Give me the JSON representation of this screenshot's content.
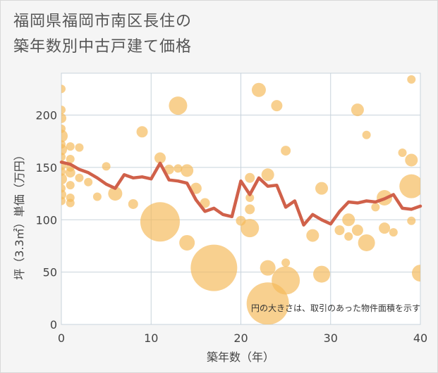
{
  "title_line1": "福岡県福岡市南区長住の",
  "title_line2": "築年数別中古戸建て価格",
  "chart_data": {
    "type": "scatter",
    "xlabel": "築年数（年）",
    "ylabel": "坪（3.3㎡）単価（万円）",
    "xlim": [
      0,
      40
    ],
    "ylim": [
      0,
      240
    ],
    "xticks": [
      0,
      10,
      20,
      30,
      40
    ],
    "yticks": [
      0,
      50,
      100,
      150,
      200
    ],
    "grid": true,
    "annotation": "円の大きさは、取引のあった物件面積を示す",
    "colors": {
      "bubble": "#f5b95a",
      "line": "#d0614a",
      "plot_bg": "#ffffff"
    },
    "line": {
      "x": [
        0,
        1,
        2,
        3,
        4,
        5,
        6,
        7,
        8,
        9,
        10,
        11,
        12,
        13,
        14,
        15,
        16,
        17,
        18,
        19,
        20,
        21,
        22,
        23,
        24,
        25,
        26,
        27,
        28,
        29,
        30,
        31,
        32,
        33,
        34,
        35,
        36,
        37,
        38,
        39,
        40
      ],
      "y": [
        155,
        153,
        148,
        145,
        140,
        134,
        130,
        143,
        140,
        141,
        139,
        154,
        138,
        137,
        135,
        119,
        108,
        111,
        105,
        103,
        137,
        124,
        140,
        132,
        133,
        112,
        118,
        95,
        105,
        100,
        96,
        108,
        117,
        116,
        118,
        117,
        120,
        124,
        111,
        110,
        113
      ]
    },
    "bubbles": [
      {
        "x": 0,
        "y": 225,
        "r": 6
      },
      {
        "x": 0,
        "y": 205,
        "r": 6
      },
      {
        "x": 0,
        "y": 197,
        "r": 7
      },
      {
        "x": 0,
        "y": 187,
        "r": 6
      },
      {
        "x": 0,
        "y": 180,
        "r": 9
      },
      {
        "x": 0,
        "y": 172,
        "r": 6
      },
      {
        "x": 0,
        "y": 167,
        "r": 8
      },
      {
        "x": 0,
        "y": 160,
        "r": 6
      },
      {
        "x": 0,
        "y": 152,
        "r": 7
      },
      {
        "x": 0,
        "y": 146,
        "r": 6
      },
      {
        "x": 0,
        "y": 139,
        "r": 8
      },
      {
        "x": 0,
        "y": 130,
        "r": 6
      },
      {
        "x": 0,
        "y": 124,
        "r": 7
      },
      {
        "x": 0,
        "y": 118,
        "r": 6
      },
      {
        "x": 1,
        "y": 170,
        "r": 6
      },
      {
        "x": 1,
        "y": 158,
        "r": 6
      },
      {
        "x": 1,
        "y": 150,
        "r": 6
      },
      {
        "x": 1,
        "y": 145,
        "r": 7
      },
      {
        "x": 1,
        "y": 133,
        "r": 6
      },
      {
        "x": 1,
        "y": 121,
        "r": 6
      },
      {
        "x": 1,
        "y": 116,
        "r": 6
      },
      {
        "x": 2,
        "y": 169,
        "r": 6
      },
      {
        "x": 2,
        "y": 140,
        "r": 6
      },
      {
        "x": 3,
        "y": 136,
        "r": 6
      },
      {
        "x": 4,
        "y": 122,
        "r": 6
      },
      {
        "x": 5,
        "y": 151,
        "r": 6
      },
      {
        "x": 6,
        "y": 125,
        "r": 10
      },
      {
        "x": 8,
        "y": 115,
        "r": 7
      },
      {
        "x": 9,
        "y": 184,
        "r": 8
      },
      {
        "x": 11,
        "y": 159,
        "r": 8
      },
      {
        "x": 11,
        "y": 98,
        "r": 28
      },
      {
        "x": 12,
        "y": 148,
        "r": 7
      },
      {
        "x": 13,
        "y": 209,
        "r": 13
      },
      {
        "x": 13,
        "y": 149,
        "r": 6
      },
      {
        "x": 14,
        "y": 147,
        "r": 9
      },
      {
        "x": 14,
        "y": 78,
        "r": 11
      },
      {
        "x": 15,
        "y": 130,
        "r": 8
      },
      {
        "x": 16,
        "y": 116,
        "r": 7
      },
      {
        "x": 17,
        "y": 54,
        "r": 33
      },
      {
        "x": 20,
        "y": 99,
        "r": 7
      },
      {
        "x": 21,
        "y": 140,
        "r": 7
      },
      {
        "x": 21,
        "y": 121,
        "r": 6
      },
      {
        "x": 21,
        "y": 110,
        "r": 7
      },
      {
        "x": 21,
        "y": 92,
        "r": 13
      },
      {
        "x": 22,
        "y": 224,
        "r": 10
      },
      {
        "x": 23,
        "y": 143,
        "r": 9
      },
      {
        "x": 23,
        "y": 54,
        "r": 11
      },
      {
        "x": 23,
        "y": 20,
        "r": 30
      },
      {
        "x": 24,
        "y": 209,
        "r": 8
      },
      {
        "x": 25,
        "y": 166,
        "r": 7
      },
      {
        "x": 25,
        "y": 59,
        "r": 6
      },
      {
        "x": 25,
        "y": 42,
        "r": 20
      },
      {
        "x": 28,
        "y": 85,
        "r": 9
      },
      {
        "x": 29,
        "y": 130,
        "r": 9
      },
      {
        "x": 29,
        "y": 48,
        "r": 12
      },
      {
        "x": 31,
        "y": 90,
        "r": 7
      },
      {
        "x": 32,
        "y": 100,
        "r": 9
      },
      {
        "x": 32,
        "y": 84,
        "r": 6
      },
      {
        "x": 33,
        "y": 205,
        "r": 9
      },
      {
        "x": 33,
        "y": 90,
        "r": 8
      },
      {
        "x": 34,
        "y": 181,
        "r": 6
      },
      {
        "x": 34,
        "y": 78,
        "r": 12
      },
      {
        "x": 35,
        "y": 112,
        "r": 6
      },
      {
        "x": 36,
        "y": 121,
        "r": 11
      },
      {
        "x": 36,
        "y": 92,
        "r": 8
      },
      {
        "x": 37,
        "y": 88,
        "r": 6
      },
      {
        "x": 38,
        "y": 164,
        "r": 6
      },
      {
        "x": 39,
        "y": 234,
        "r": 6
      },
      {
        "x": 39,
        "y": 157,
        "r": 9
      },
      {
        "x": 39,
        "y": 132,
        "r": 17
      },
      {
        "x": 39,
        "y": 99,
        "r": 6
      },
      {
        "x": 40,
        "y": 49,
        "r": 12
      }
    ]
  }
}
